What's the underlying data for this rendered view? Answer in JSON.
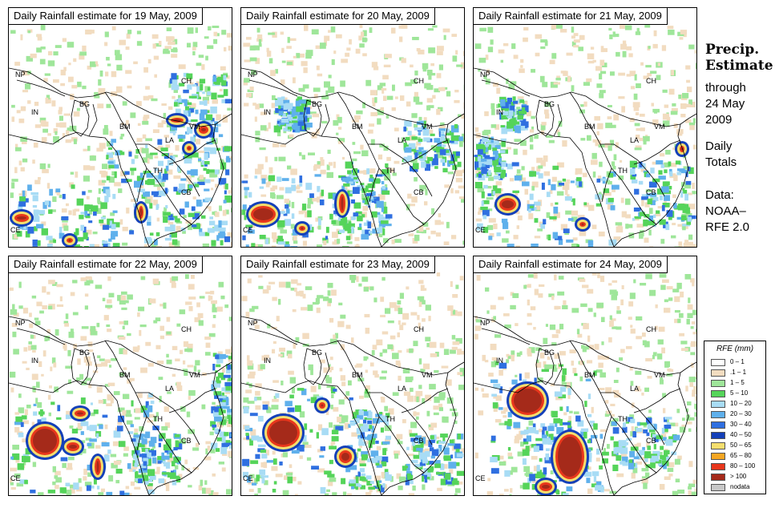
{
  "panels": [
    {
      "title": "Daily Rainfall estimate for  19 May, 2009"
    },
    {
      "title": "Daily Rainfall estimate for  20 May, 2009"
    },
    {
      "title": "Daily Rainfall estimate for  21 May, 2009"
    },
    {
      "title": "Daily Rainfall estimate for  22 May, 2009"
    },
    {
      "title": "Daily Rainfall estimate for  23 May, 2009"
    },
    {
      "title": "Daily Rainfall estimate for  24 May, 2009"
    }
  ],
  "country_labels": {
    "np": "NP",
    "ch": "CH",
    "in": "IN",
    "bg": "BG",
    "bm": "BM",
    "vm": "VM",
    "la": "LA",
    "th": "TH",
    "cb": "CB",
    "ce": "CE"
  },
  "side": {
    "title_line1": "Precip.",
    "title_line2": "Estimate",
    "through": "through",
    "date_line1": "24 May",
    "date_line2": "2009",
    "daily_line1": "Daily",
    "daily_line2": "Totals",
    "data_line1": "Data:",
    "data_line2": "NOAA–",
    "data_line3": "RFE 2.0"
  },
  "legend": {
    "title": "RFE (mm)",
    "items": [
      {
        "label": "0 – 1",
        "color": "#ffffff"
      },
      {
        "label": ".1 – 1",
        "color": "#f2dcc0"
      },
      {
        "label": "1 – 5",
        "color": "#9fe69a"
      },
      {
        "label": "5 – 10",
        "color": "#55d45a"
      },
      {
        "label": "10 – 20",
        "color": "#a8dcf5"
      },
      {
        "label": "20 – 30",
        "color": "#5fb0ec"
      },
      {
        "label": "30 – 40",
        "color": "#2f6fe0"
      },
      {
        "label": "40 – 50",
        "color": "#1440b8"
      },
      {
        "label": "50 – 65",
        "color": "#f5de6e"
      },
      {
        "label": "65 – 80",
        "color": "#f5a623"
      },
      {
        "label": "80 – 100",
        "color": "#e8361c"
      },
      {
        "label": "> 100",
        "color": "#a52a1a"
      },
      {
        "label": "nodata",
        "color": "#c8c8c8"
      }
    ]
  }
}
